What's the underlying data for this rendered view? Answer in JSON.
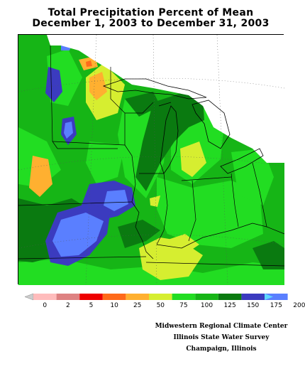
{
  "title": {
    "line1": "Total Precipitation Percent of Mean",
    "line2": "December 1, 2003 to December 31, 2003"
  },
  "legend": {
    "colors": [
      "#ffbcbc",
      "#de8282",
      "#ee0000",
      "#ff6a1a",
      "#ffb030",
      "#d6ee30",
      "#22dd22",
      "#16b516",
      "#0a7a10",
      "#3b3bbf",
      "#5a7fff",
      "#5fd7ff"
    ],
    "labels": [
      "0",
      "2",
      "5",
      "10",
      "25",
      "50",
      "75",
      "100",
      "125",
      "150",
      "175",
      "200"
    ]
  },
  "credits": {
    "line1": "Midwestern Regional Climate Center",
    "line2": "Illinois State Water Survey",
    "line3": "Champaign, Illinois"
  }
}
